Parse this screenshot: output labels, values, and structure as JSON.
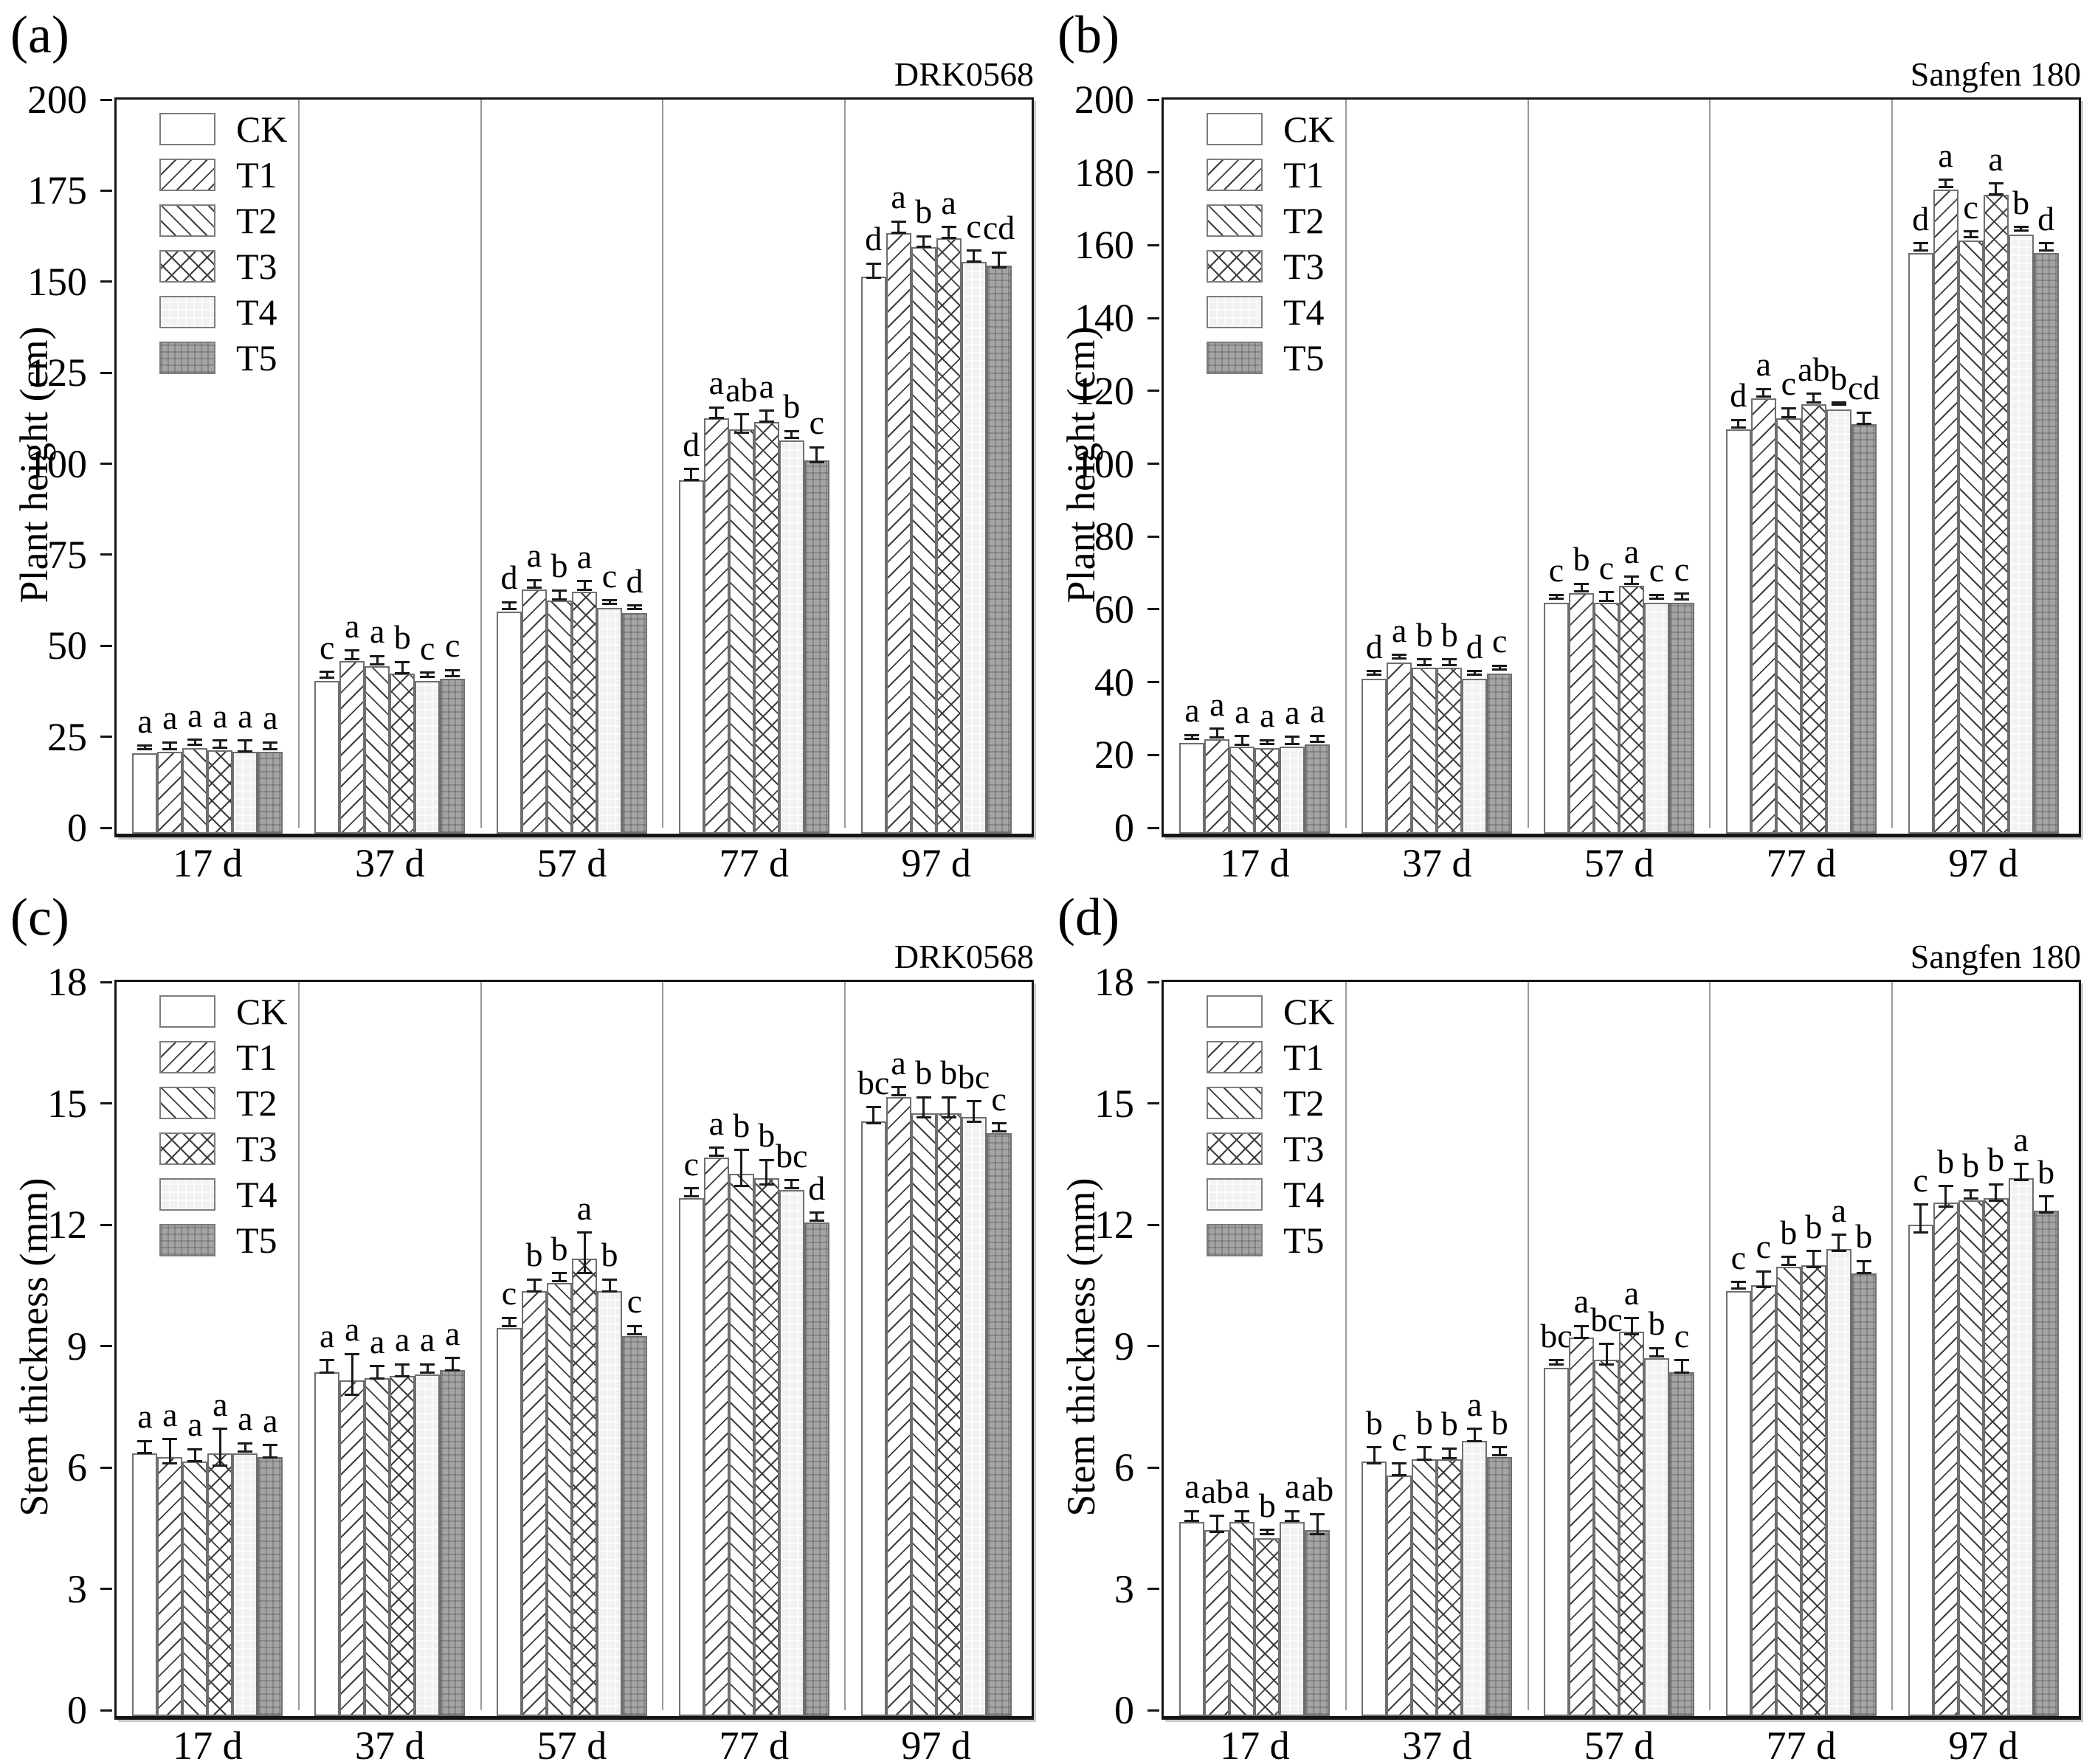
{
  "colors": {
    "axis": "#161616",
    "hatch_line": "#3d3d3d",
    "bar_border": "#6f6f6f",
    "error_bar": "#1a1a1a",
    "group_separator": "#9a9a9a",
    "t4_fill": "#f1f1f1",
    "t5_fill": "#a4a4a4",
    "background": "#ffffff"
  },
  "legend": {
    "items": [
      {
        "label": "CK",
        "pattern": "plain"
      },
      {
        "label": "T1",
        "pattern": "diag-f"
      },
      {
        "label": "T2",
        "pattern": "diag-b"
      },
      {
        "label": "T3",
        "pattern": "cross"
      },
      {
        "label": "T4",
        "pattern": "lightgrid"
      },
      {
        "label": "T5",
        "pattern": "darkgrid"
      }
    ]
  },
  "chart_data": [
    {
      "type": "bar",
      "panel_label": "(a)",
      "title": "DRK0568",
      "xlabel": "",
      "ylabel": "Plant height (cm)",
      "ylim": [
        0,
        200
      ],
      "ytick_step": 25,
      "grid": false,
      "legend_position": "top-left",
      "categories": [
        "17 d",
        "37 d",
        "57 d",
        "77 d",
        "97 d"
      ],
      "series": [
        {
          "name": "CK",
          "pattern": "plain",
          "values": [
            22,
            42,
            61,
            97,
            153
          ],
          "errors": [
            0.5,
            0.8,
            1,
            1.5,
            2
          ],
          "letters": [
            "a",
            "c",
            "d",
            "d",
            "d"
          ]
        },
        {
          "name": "T1",
          "pattern": "diag-f",
          "values": [
            22.5,
            47.5,
            67,
            114,
            165
          ],
          "errors": [
            1,
            1.2,
            1,
            1.5,
            1.5
          ],
          "letters": [
            "a",
            "a",
            "a",
            "a",
            "a"
          ]
        },
        {
          "name": "T2",
          "pattern": "diag-b",
          "values": [
            23.5,
            46,
            64,
            111,
            161
          ],
          "errors": [
            0.7,
            1.2,
            1.2,
            2.5,
            1.5
          ],
          "letters": [
            "a",
            "a",
            "b",
            "ab",
            "b"
          ]
        },
        {
          "name": "T3",
          "pattern": "cross",
          "values": [
            23,
            44,
            66.5,
            113,
            163.5
          ],
          "errors": [
            1,
            1.5,
            1.2,
            1.5,
            1.5
          ],
          "letters": [
            "a",
            "b",
            "a",
            "a",
            "a"
          ]
        },
        {
          "name": "T4",
          "pattern": "lightgrid",
          "values": [
            22.5,
            42,
            62,
            108,
            157
          ],
          "errors": [
            1.5,
            0.6,
            0.5,
            1,
            1.5
          ],
          "letters": [
            "a",
            "c",
            "c",
            "b",
            "c"
          ]
        },
        {
          "name": "T5",
          "pattern": "darkgrid",
          "values": [
            22.5,
            42.5,
            60.5,
            102.5,
            156
          ],
          "errors": [
            1,
            0.8,
            0.5,
            2,
            2
          ],
          "letters": [
            "a",
            "c",
            "d",
            "c",
            "cd"
          ]
        }
      ]
    },
    {
      "type": "bar",
      "panel_label": "(b)",
      "title": "Sangfen 180",
      "xlabel": "",
      "ylabel": "Plant height (cm)",
      "ylim": [
        0,
        200
      ],
      "ytick_step": 20,
      "grid": false,
      "legend_position": "top-left",
      "categories": [
        "17 d",
        "37 d",
        "57 d",
        "77 d",
        "97 d"
      ],
      "series": [
        {
          "name": "CK",
          "pattern": "plain",
          "values": [
            25,
            42.5,
            63.5,
            111,
            159.5
          ],
          "errors": [
            0.5,
            0.5,
            0.5,
            1,
            1
          ],
          "letters": [
            "a",
            "d",
            "c",
            "d",
            "d"
          ]
        },
        {
          "name": "T1",
          "pattern": "diag-f",
          "values": [
            26,
            47,
            66,
            119.5,
            177
          ],
          "errors": [
            1.2,
            0.5,
            1,
            1,
            1
          ],
          "letters": [
            "a",
            "a",
            "b",
            "a",
            "a"
          ]
        },
        {
          "name": "T2",
          "pattern": "diag-b",
          "values": [
            24,
            45.5,
            63.5,
            114,
            163
          ],
          "errors": [
            1.2,
            0.8,
            1.2,
            1.2,
            0.8
          ],
          "letters": [
            "a",
            "b",
            "c",
            "c",
            "c"
          ]
        },
        {
          "name": "T3",
          "pattern": "cross",
          "values": [
            23.5,
            45.5,
            68,
            118,
            175.5
          ],
          "errors": [
            0.6,
            0.8,
            1,
            1.2,
            1.5
          ],
          "letters": [
            "a",
            "b",
            "a",
            "ab",
            "a"
          ]
        },
        {
          "name": "T4",
          "pattern": "lightgrid",
          "values": [
            24,
            42.5,
            63.5,
            116.5,
            164.5
          ],
          "errors": [
            1,
            0.5,
            0.5,
            0.3,
            0.5
          ],
          "letters": [
            "a",
            "d",
            "c",
            "b",
            "b"
          ]
        },
        {
          "name": "T5",
          "pattern": "darkgrid",
          "values": [
            24.5,
            44,
            63.5,
            112.5,
            159.5
          ],
          "errors": [
            0.8,
            0.5,
            0.8,
            1.5,
            1
          ],
          "letters": [
            "a",
            "c",
            "c",
            "cd",
            "d"
          ]
        }
      ]
    },
    {
      "type": "bar",
      "panel_label": "(c)",
      "title": "DRK0568",
      "xlabel": "",
      "ylabel": "Stem thickness (mm)",
      "ylim": [
        0,
        18
      ],
      "ytick_step": 3,
      "grid": false,
      "legend_position": "top-left",
      "categories": [
        "17 d",
        "37 d",
        "57 d",
        "77 d",
        "97 d"
      ],
      "series": [
        {
          "name": "CK",
          "pattern": "plain",
          "values": [
            6.5,
            8.5,
            9.6,
            12.8,
            14.7
          ],
          "errors": [
            0.15,
            0.15,
            0.1,
            0.1,
            0.2
          ],
          "letters": [
            "a",
            "a",
            "c",
            "c",
            "bc"
          ]
        },
        {
          "name": "T1",
          "pattern": "diag-f",
          "values": [
            6.4,
            8.3,
            10.5,
            13.8,
            15.3
          ],
          "errors": [
            0.3,
            0.5,
            0.15,
            0.1,
            0.1
          ],
          "letters": [
            "a",
            "a",
            "b",
            "a",
            "a"
          ]
        },
        {
          "name": "T2",
          "pattern": "diag-b",
          "values": [
            6.3,
            8.35,
            10.7,
            13.4,
            14.9
          ],
          "errors": [
            0.15,
            0.15,
            0.1,
            0.45,
            0.25
          ],
          "letters": [
            "a",
            "a",
            "b",
            "b",
            "b"
          ]
        },
        {
          "name": "T3",
          "pattern": "cross",
          "values": [
            6.5,
            8.4,
            11.3,
            13.3,
            14.9
          ],
          "errors": [
            0.45,
            0.15,
            0.5,
            0.3,
            0.25
          ],
          "letters": [
            "a",
            "a",
            "a",
            "b",
            "b"
          ]
        },
        {
          "name": "T4",
          "pattern": "lightgrid",
          "values": [
            6.5,
            8.45,
            10.5,
            13,
            14.8
          ],
          "errors": [
            0.1,
            0.1,
            0.15,
            0.1,
            0.25
          ],
          "letters": [
            "a",
            "a",
            "b",
            "bc",
            "bc"
          ]
        },
        {
          "name": "T5",
          "pattern": "darkgrid",
          "values": [
            6.4,
            8.55,
            9.4,
            12.2,
            14.4
          ],
          "errors": [
            0.15,
            0.15,
            0.1,
            0.1,
            0.1
          ],
          "letters": [
            "a",
            "a",
            "c",
            "d",
            "c"
          ]
        }
      ]
    },
    {
      "type": "bar",
      "panel_label": "(d)",
      "title": "Sangfen 180",
      "xlabel": "",
      "ylabel": "Stem thickness (mm)",
      "ylim": [
        0,
        18
      ],
      "ytick_step": 3,
      "grid": false,
      "legend_position": "top-left",
      "categories": [
        "17 d",
        "37 d",
        "57 d",
        "77 d",
        "97 d"
      ],
      "series": [
        {
          "name": "CK",
          "pattern": "plain",
          "values": [
            4.8,
            6.3,
            8.6,
            10.5,
            12.15
          ],
          "errors": [
            0.12,
            0.2,
            0.05,
            0.08,
            0.35
          ],
          "letters": [
            "a",
            "b",
            "bc",
            "c",
            "c"
          ]
        },
        {
          "name": "T1",
          "pattern": "diag-f",
          "values": [
            4.6,
            5.95,
            9.35,
            10.65,
            12.7
          ],
          "errors": [
            0.2,
            0.15,
            0.15,
            0.2,
            0.25
          ],
          "letters": [
            "ab",
            "c",
            "a",
            "c",
            "b"
          ]
        },
        {
          "name": "T2",
          "pattern": "diag-b",
          "values": [
            4.8,
            6.35,
            8.8,
            11.1,
            12.75
          ],
          "errors": [
            0.12,
            0.15,
            0.25,
            0.1,
            0.1
          ],
          "letters": [
            "a",
            "b",
            "bc",
            "b",
            "b"
          ]
        },
        {
          "name": "T3",
          "pattern": "cross",
          "values": [
            4.4,
            6.35,
            9.5,
            11.15,
            12.8
          ],
          "errors": [
            0.05,
            0.12,
            0.2,
            0.2,
            0.2
          ],
          "letters": [
            "b",
            "b",
            "a",
            "b",
            "b"
          ]
        },
        {
          "name": "T4",
          "pattern": "lightgrid",
          "values": [
            4.8,
            6.8,
            8.85,
            11.55,
            13.3
          ],
          "errors": [
            0.12,
            0.15,
            0.1,
            0.2,
            0.2
          ],
          "letters": [
            "a",
            "a",
            "b",
            "a",
            "a"
          ]
        },
        {
          "name": "T5",
          "pattern": "darkgrid",
          "values": [
            4.6,
            6.4,
            8.5,
            10.95,
            12.5
          ],
          "errors": [
            0.25,
            0.1,
            0.15,
            0.15,
            0.2
          ],
          "letters": [
            "ab",
            "b",
            "c",
            "b",
            "b"
          ]
        }
      ]
    }
  ]
}
